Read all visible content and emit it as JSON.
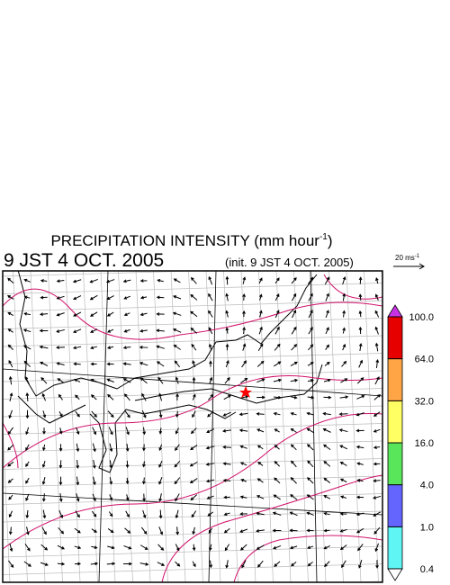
{
  "header": {
    "title": "PRECIPITATION INTENSITY (mm hour",
    "title_exponent": "-1",
    "title_close": ")",
    "valid_time": "9 JST 4 OCT. 2005",
    "init_time": "(init. 9 JST 4 OCT. 2005)"
  },
  "vector_scale": {
    "label": "20 ms",
    "exponent": "-1"
  },
  "colorbar": {
    "levels": [
      {
        "value": 0.4,
        "label": "0.4"
      },
      {
        "value": 1,
        "label": "1.0"
      },
      {
        "value": 4,
        "label": "4.0"
      },
      {
        "value": 16,
        "label": "16.0"
      },
      {
        "value": 32,
        "label": "32.0"
      },
      {
        "value": 64,
        "label": "64.0"
      },
      {
        "value": 100,
        "label": "100.0"
      }
    ],
    "colors": [
      "#5ff5f5",
      "#6464ff",
      "#5ae65a",
      "#ffff64",
      "#ffa546",
      "#e60000"
    ],
    "under_color": "#ffffff",
    "over_color": "#c832e6"
  }
}
